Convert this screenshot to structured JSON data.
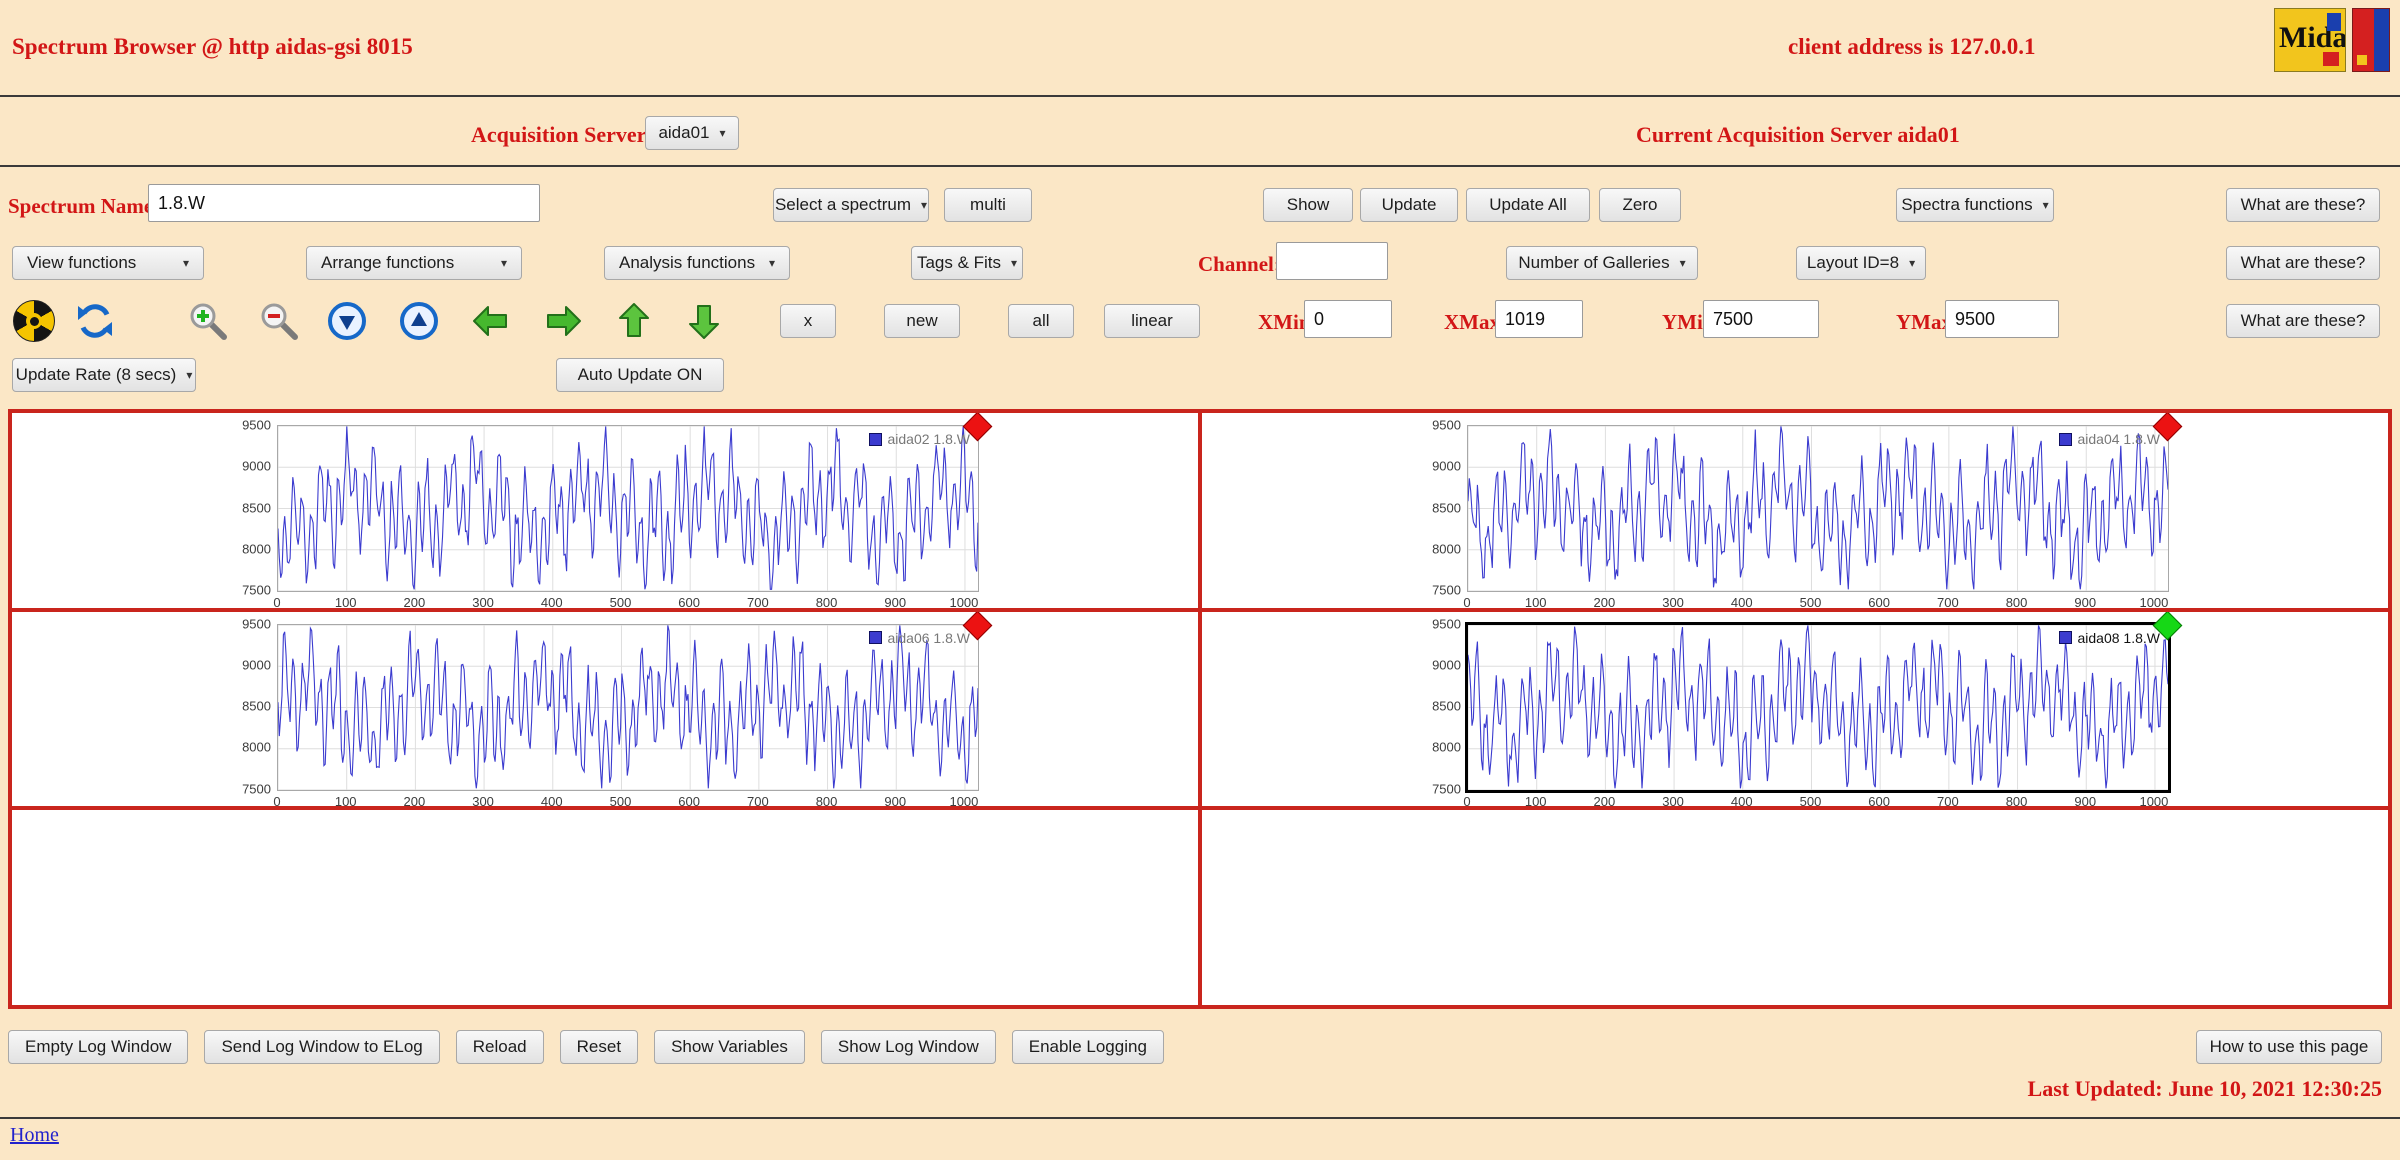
{
  "page": {
    "title": "Spectrum Browser @ http aidas-gsi 8015",
    "client_address": "client address is 127.0.0.1",
    "last_updated": "Last Updated: June 10, 2021 12:30:25",
    "home_link": "Home"
  },
  "logos": {
    "midas_text": "Midas"
  },
  "acquisition": {
    "label": "Acquisition Servers",
    "selected": "aida01",
    "current": "Current Acquisition Server aida01"
  },
  "spectrum_row": {
    "name_label": "Spectrum Name:",
    "name_value": "1.8.W",
    "select_spectrum": "Select a spectrum",
    "multi": "multi",
    "show": "Show",
    "update": "Update",
    "update_all": "Update All",
    "zero": "Zero",
    "spectra_functions": "Spectra functions",
    "what_are_these": "What are these?"
  },
  "functions_row": {
    "view_functions": "View functions",
    "arrange_functions": "Arrange functions",
    "analysis_functions": "Analysis functions",
    "tags_fits": "Tags & Fits",
    "channel_label": "Channel:",
    "channel_value": "",
    "number_of_galleries": "Number of Galleries",
    "layout_id": "Layout ID=8",
    "what_are_these": "What are these?"
  },
  "toolbar_row": {
    "x": "x",
    "new": "new",
    "all": "all",
    "linear": "linear",
    "xmin_label": "XMin",
    "xmin": "0",
    "xmax_label": "XMax",
    "xmax": "1019",
    "ymin_label": "YMin",
    "ymin": "7500",
    "ymax_label": "YMax",
    "ymax": "9500",
    "what_are_these": "What are these?"
  },
  "update_row": {
    "update_rate": "Update Rate (8 secs)",
    "auto_update": "Auto Update ON"
  },
  "icons": {
    "list": [
      "radiation-icon",
      "refresh-icon",
      "zoom-in-icon",
      "zoom-out-icon",
      "scroll-down-icon",
      "scroll-up-icon",
      "arrow-left-icon",
      "arrow-right-icon",
      "arrow-up-icon",
      "arrow-down-icon"
    ]
  },
  "footer": {
    "buttons": [
      "Empty Log Window",
      "Send Log Window to ELog",
      "Reload",
      "Reset",
      "Show Variables",
      "Show Log Window",
      "Enable Logging"
    ],
    "help": "How to use this page"
  },
  "colors": {
    "accent_red": "#d21616",
    "grid_border": "#c9251d",
    "series_blue": "#3b3bcf",
    "marker_red": "#ec1212",
    "marker_green": "#16d816",
    "background": "#fbe7c6"
  },
  "chart_data": [
    {
      "type": "line",
      "legend": "aida02 1.8.W",
      "series_color": "#3b3bcf",
      "marker": {
        "shape": "diamond",
        "color": "#ec1212",
        "edge": "#8f0000"
      },
      "x_range": [
        0,
        1019
      ],
      "y_range": [
        7500,
        9500
      ],
      "x_ticks": [
        0,
        100,
        200,
        300,
        400,
        500,
        600,
        700,
        800,
        900,
        1000
      ],
      "y_ticks": [
        7500,
        8000,
        8500,
        9000,
        9500
      ],
      "grid": true,
      "legend_position": "top-right",
      "selected": false,
      "seed": 11
    },
    {
      "type": "line",
      "legend": "aida04 1.8.W",
      "series_color": "#3b3bcf",
      "marker": {
        "shape": "diamond",
        "color": "#ec1212",
        "edge": "#8f0000"
      },
      "x_range": [
        0,
        1019
      ],
      "y_range": [
        7500,
        9500
      ],
      "x_ticks": [
        0,
        100,
        200,
        300,
        400,
        500,
        600,
        700,
        800,
        900,
        1000
      ],
      "y_ticks": [
        7500,
        8000,
        8500,
        9000,
        9500
      ],
      "grid": true,
      "legend_position": "top-right",
      "selected": false,
      "seed": 23
    },
    {
      "type": "line",
      "legend": "aida06 1.8.W",
      "series_color": "#3b3bcf",
      "marker": {
        "shape": "diamond",
        "color": "#ec1212",
        "edge": "#8f0000"
      },
      "x_range": [
        0,
        1019
      ],
      "y_range": [
        7500,
        9500
      ],
      "x_ticks": [
        0,
        100,
        200,
        300,
        400,
        500,
        600,
        700,
        800,
        900,
        1000
      ],
      "y_ticks": [
        7500,
        8000,
        8500,
        9000,
        9500
      ],
      "grid": true,
      "legend_position": "top-right",
      "selected": false,
      "seed": 37
    },
    {
      "type": "line",
      "legend": "aida08 1.8.W",
      "series_color": "#3b3bcf",
      "marker": {
        "shape": "diamond",
        "color": "#16d816",
        "edge": "#067a06"
      },
      "x_range": [
        0,
        1019
      ],
      "y_range": [
        7500,
        9500
      ],
      "x_ticks": [
        0,
        100,
        200,
        300,
        400,
        500,
        600,
        700,
        800,
        900,
        1000
      ],
      "y_ticks": [
        7500,
        8000,
        8500,
        9000,
        9500
      ],
      "grid": true,
      "legend_position": "top-right",
      "selected": true,
      "seed": 52
    }
  ]
}
